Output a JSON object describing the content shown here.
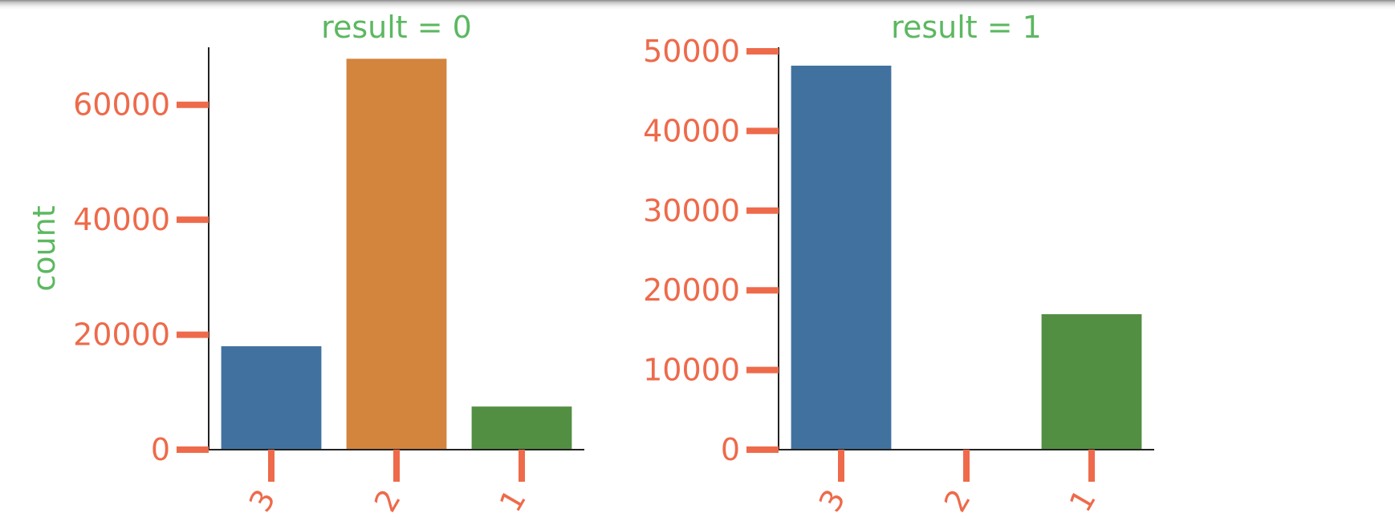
{
  "chart_data": [
    {
      "type": "bar",
      "title": "result = 0",
      "ylabel": "count",
      "xlabel": "",
      "categories": [
        "3",
        "2",
        "1"
      ],
      "values": [
        18000,
        68000,
        7500
      ],
      "ylim": [
        0,
        70000
      ],
      "yticks": [
        0,
        20000,
        40000,
        60000
      ],
      "ytick_labels": [
        "0",
        "20000",
        "40000",
        "60000"
      ],
      "grid": false
    },
    {
      "type": "bar",
      "title": "result = 1",
      "ylabel": "",
      "xlabel": "",
      "categories": [
        "3",
        "2",
        "1"
      ],
      "values": [
        48200,
        0,
        17000
      ],
      "ylim": [
        0,
        50500
      ],
      "yticks": [
        0,
        10000,
        20000,
        30000,
        40000,
        50000
      ],
      "ytick_labels": [
        "0",
        "10000",
        "20000",
        "30000",
        "40000",
        "50000"
      ],
      "grid": false
    }
  ],
  "colors": {
    "bars": [
      "#41729f",
      "#d3843d",
      "#528f43"
    ],
    "title": "#5cb861",
    "tick": "#ee6a4a",
    "axis": "#222222"
  }
}
